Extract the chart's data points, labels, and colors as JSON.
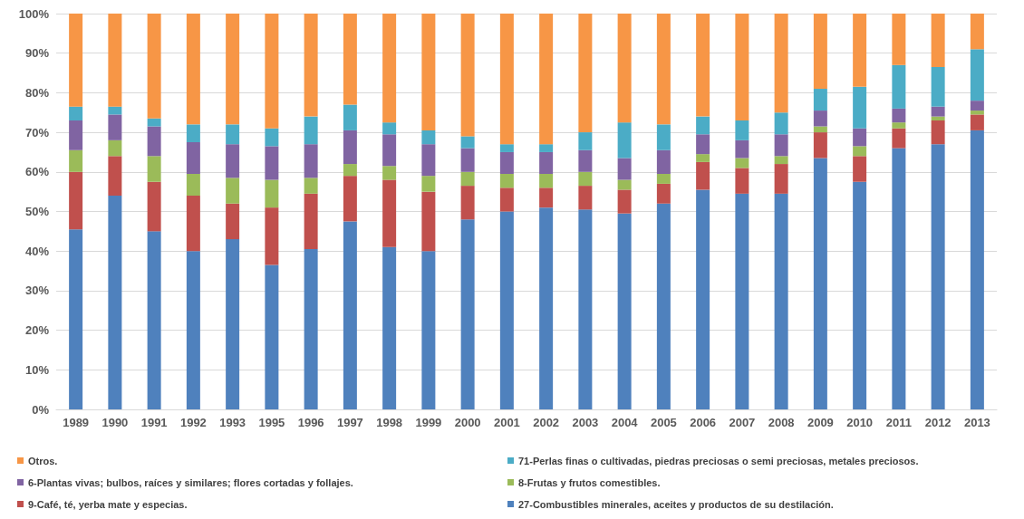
{
  "chart_data": {
    "type": "bar",
    "stacked": true,
    "grid": "y",
    "legend": "bottom",
    "categories": [
      "1989",
      "1990",
      "1991",
      "1992",
      "1993",
      "1995",
      "1996",
      "1997",
      "1998",
      "1999",
      "2000",
      "2001",
      "2002",
      "2003",
      "2004",
      "2005",
      "2006",
      "2007",
      "2008",
      "2009",
      "2010",
      "2011",
      "2012",
      "2013"
    ],
    "ylim": [
      0,
      100
    ],
    "yticks": [
      {
        "value": 0,
        "label": "0%"
      },
      {
        "value": 10,
        "label": "10%"
      },
      {
        "value": 20,
        "label": "20%"
      },
      {
        "value": 30,
        "label": "30%"
      },
      {
        "value": 40,
        "label": "40%"
      },
      {
        "value": 50,
        "label": "50%"
      },
      {
        "value": 60,
        "label": "60%"
      },
      {
        "value": 70,
        "label": "70%"
      },
      {
        "value": 80,
        "label": "80%"
      },
      {
        "value": 90,
        "label": "90%"
      },
      {
        "value": 100,
        "label": "100%"
      }
    ],
    "series": [
      {
        "name": "27-Combustibles minerales, aceites y productos de su destilación.",
        "color": "#4f81bd",
        "values": [
          45.5,
          54,
          45,
          40,
          43,
          36.5,
          40.5,
          47.5,
          41,
          40,
          48,
          50,
          51,
          50.5,
          49.5,
          52,
          55.5,
          54.5,
          54.5,
          63.5,
          57.5,
          66,
          67,
          70.5
        ]
      },
      {
        "name": "9-Café, té, yerba mate y especias.",
        "color": "#c0504d",
        "values": [
          14.5,
          10,
          12.5,
          14,
          9,
          14.5,
          14,
          11.5,
          17,
          15,
          8.5,
          6,
          5,
          6,
          6,
          5,
          7,
          6.5,
          7.5,
          6.5,
          6.5,
          5,
          6,
          4
        ]
      },
      {
        "name": "8-Frutas y frutos comestibles.",
        "color": "#9bbb59",
        "values": [
          5.5,
          4,
          6.5,
          5.5,
          6.5,
          7,
          4,
          3,
          3.5,
          4,
          3.5,
          3.5,
          3.5,
          3.5,
          2.5,
          2.5,
          2,
          2.5,
          2,
          1.5,
          2.5,
          1.5,
          1,
          1
        ]
      },
      {
        "name": "6-Plantas vivas; bulbos, raíces y similares; flores cortadas y follajes.",
        "color": "#8064a2",
        "values": [
          7.5,
          6.5,
          7.5,
          8,
          8.5,
          8.5,
          8.5,
          8.5,
          8,
          8,
          6,
          5.5,
          5.5,
          5.5,
          5.5,
          6,
          5,
          4.5,
          5.5,
          4,
          4.5,
          3.5,
          2.5,
          2.5
        ]
      },
      {
        "name": "71-Perlas finas o cultivadas, piedras preciosas o semi preciosas, metales preciosos.",
        "color": "#4bacc6",
        "values": [
          3.5,
          2,
          2,
          4.5,
          5,
          4.5,
          7,
          6.5,
          3,
          3.5,
          3,
          2,
          2,
          4.5,
          9,
          6.5,
          4.5,
          5,
          5.5,
          5.5,
          10.5,
          11,
          10,
          13
        ]
      },
      {
        "name": "Otros.",
        "color": "#f79646",
        "values": [
          23.5,
          23.5,
          26.5,
          28,
          28,
          29,
          26,
          23,
          27.5,
          29.5,
          31,
          33,
          33,
          30,
          27.5,
          28,
          26,
          27,
          25,
          19,
          18.5,
          13,
          13.5,
          9
        ]
      }
    ]
  }
}
